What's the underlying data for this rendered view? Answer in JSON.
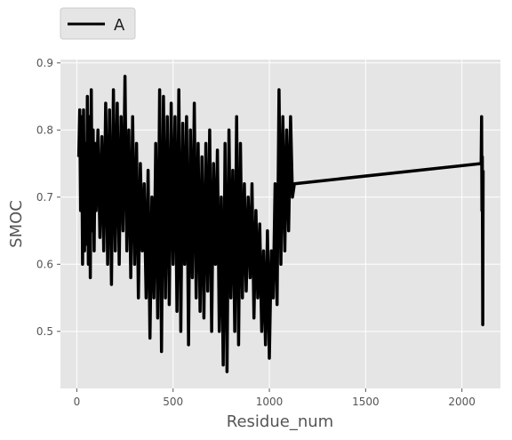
{
  "chart_data": {
    "type": "line",
    "xlabel": "Residue_num",
    "ylabel": "SMOC",
    "xlim": [
      -85,
      2200
    ],
    "ylim": [
      0.415,
      0.905
    ],
    "x_ticks": [
      0,
      500,
      1000,
      1500,
      2000
    ],
    "y_ticks": [
      0.5,
      0.6,
      0.7,
      0.8,
      0.9
    ],
    "grid": true,
    "legend_position": "top-left, above plot",
    "line_color": "#000000",
    "background_color": "#e5e5e5",
    "series": [
      {
        "name": "A",
        "x": [
          10,
          15,
          20,
          25,
          30,
          35,
          40,
          45,
          50,
          55,
          60,
          65,
          70,
          75,
          80,
          85,
          90,
          95,
          100,
          110,
          120,
          130,
          140,
          150,
          160,
          170,
          180,
          190,
          200,
          210,
          220,
          230,
          240,
          250,
          260,
          270,
          280,
          290,
          300,
          310,
          320,
          330,
          340,
          350,
          360,
          370,
          380,
          390,
          400,
          410,
          420,
          430,
          440,
          450,
          460,
          470,
          480,
          490,
          500,
          510,
          520,
          530,
          540,
          550,
          560,
          570,
          580,
          590,
          600,
          610,
          620,
          630,
          640,
          650,
          660,
          670,
          680,
          690,
          700,
          710,
          720,
          730,
          740,
          750,
          760,
          770,
          780,
          790,
          800,
          810,
          820,
          830,
          840,
          850,
          860,
          870,
          880,
          890,
          900,
          910,
          920,
          930,
          940,
          950,
          960,
          970,
          980,
          990,
          1000,
          1010,
          1020,
          1030,
          1040,
          1050,
          1060,
          1070,
          1080,
          1090,
          1100,
          1110,
          1120,
          1130,
          2100,
          2102,
          2104,
          2106,
          2108,
          2110
        ],
        "values": [
          0.76,
          0.83,
          0.68,
          0.82,
          0.6,
          0.83,
          0.62,
          0.78,
          0.63,
          0.85,
          0.6,
          0.82,
          0.58,
          0.86,
          0.65,
          0.8,
          0.62,
          0.78,
          0.68,
          0.8,
          0.64,
          0.79,
          0.62,
          0.84,
          0.6,
          0.83,
          0.57,
          0.86,
          0.62,
          0.84,
          0.6,
          0.82,
          0.65,
          0.88,
          0.62,
          0.8,
          0.58,
          0.82,
          0.6,
          0.78,
          0.55,
          0.75,
          0.62,
          0.72,
          0.55,
          0.74,
          0.49,
          0.7,
          0.55,
          0.78,
          0.52,
          0.86,
          0.47,
          0.85,
          0.55,
          0.82,
          0.54,
          0.84,
          0.6,
          0.82,
          0.53,
          0.86,
          0.5,
          0.81,
          0.6,
          0.82,
          0.48,
          0.8,
          0.58,
          0.84,
          0.55,
          0.78,
          0.53,
          0.76,
          0.52,
          0.78,
          0.56,
          0.8,
          0.5,
          0.75,
          0.6,
          0.77,
          0.5,
          0.7,
          0.45,
          0.78,
          0.44,
          0.8,
          0.55,
          0.74,
          0.5,
          0.82,
          0.48,
          0.78,
          0.55,
          0.72,
          0.56,
          0.7,
          0.58,
          0.72,
          0.52,
          0.68,
          0.55,
          0.66,
          0.5,
          0.62,
          0.48,
          0.65,
          0.46,
          0.62,
          0.55,
          0.72,
          0.54,
          0.86,
          0.6,
          0.82,
          0.62,
          0.8,
          0.65,
          0.82,
          0.7,
          0.72,
          0.75,
          0.82,
          0.68,
          0.76,
          0.51,
          0.74
        ]
      }
    ]
  }
}
